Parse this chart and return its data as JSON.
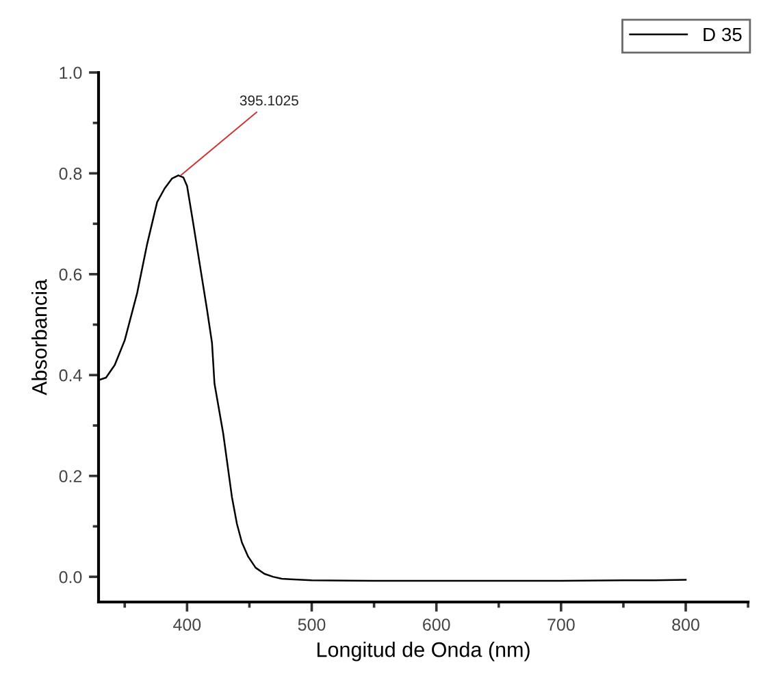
{
  "chart_data": {
    "type": "line",
    "xlabel": "Longitud de Onda (nm)",
    "ylabel": "Absorbancia",
    "xlim": [
      329,
      850
    ],
    "ylim": [
      -0.05,
      1.0
    ],
    "xticks": [
      400,
      500,
      600,
      700,
      800
    ],
    "yticks": [
      {
        "value": 0,
        "label": "0.0"
      },
      0.2,
      0.4,
      0.6,
      0.8,
      {
        "value": 1,
        "label": "1.0"
      }
    ],
    "series": [
      {
        "name": "D 35",
        "color": "#000000",
        "x": [
          329,
          335,
          342,
          350,
          360,
          368,
          376,
          382,
          388,
          393,
          397,
          400,
          405,
          411,
          416,
          420,
          422,
          429,
          436,
          440,
          444,
          449,
          455,
          462,
          469,
          476,
          483,
          500,
          550,
          600,
          650,
          700,
          750,
          775,
          800
        ],
        "values": [
          0.39,
          0.395,
          0.42,
          0.469,
          0.563,
          0.66,
          0.743,
          0.77,
          0.79,
          0.796,
          0.792,
          0.775,
          0.7,
          0.607,
          0.53,
          0.464,
          0.383,
          0.284,
          0.158,
          0.105,
          0.068,
          0.04,
          0.018,
          0.006,
          0.0,
          -0.004,
          -0.005,
          -0.007,
          -0.008,
          -0.008,
          -0.008,
          -0.008,
          -0.007,
          -0.007,
          -0.006
        ]
      }
    ],
    "annotations": [
      {
        "text": "395.1025",
        "x": 395,
        "y": 0.796
      }
    ],
    "legend": "top right",
    "grid": false,
    "marker": "none",
    "line_style": "solid"
  }
}
